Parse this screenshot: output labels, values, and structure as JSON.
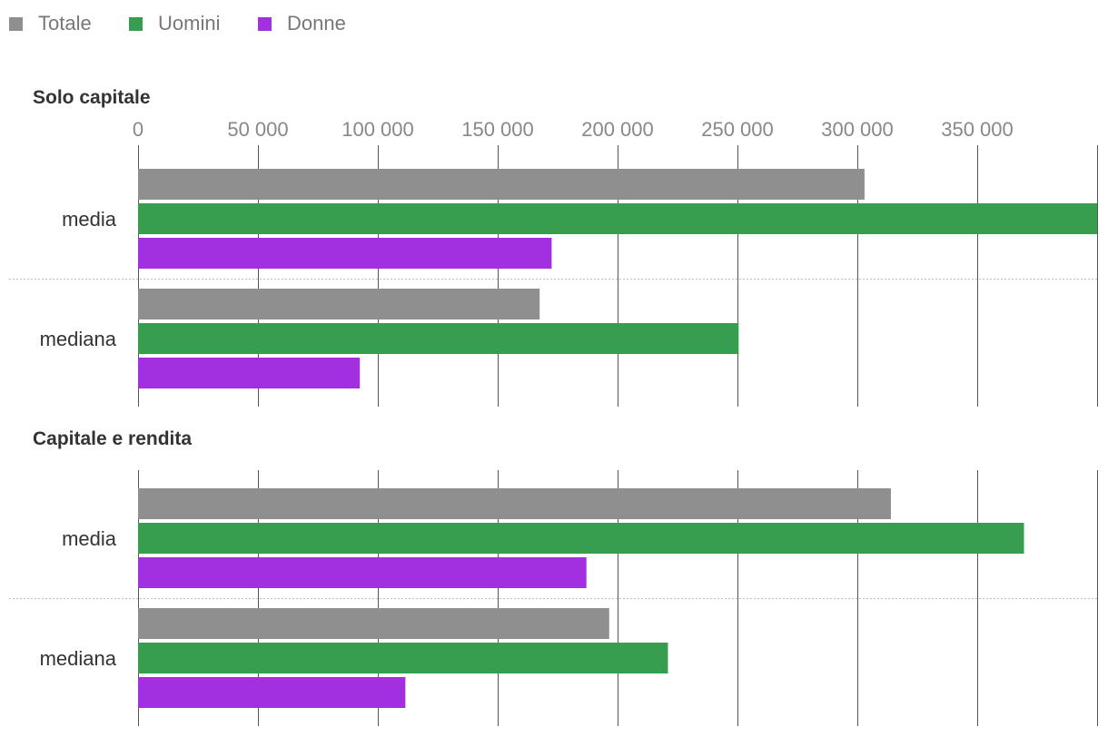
{
  "chart_data": {
    "type": "bar",
    "orientation": "horizontal",
    "legend": [
      {
        "name": "Totale",
        "color": "#8f8f8f"
      },
      {
        "name": "Uomini",
        "color": "#379e4f"
      },
      {
        "name": "Donne",
        "color": "#a22fe0"
      }
    ],
    "xlim": [
      0,
      400000
    ],
    "ticks": [
      {
        "value": 0,
        "label": "0"
      },
      {
        "value": 50000,
        "label": "50 000"
      },
      {
        "value": 100000,
        "label": "100 000"
      },
      {
        "value": 150000,
        "label": "150 000"
      },
      {
        "value": 200000,
        "label": "200 000"
      },
      {
        "value": 250000,
        "label": "250 000"
      },
      {
        "value": 300000,
        "label": "300 000"
      },
      {
        "value": 350000,
        "label": "350 000"
      }
    ],
    "panels": [
      {
        "title": "Solo capitale",
        "categories": [
          "media",
          "mediana"
        ],
        "series": [
          {
            "name": "Totale",
            "values": [
              303000,
              167500
            ]
          },
          {
            "name": "Uomini",
            "values": [
              400000,
              250500
            ]
          },
          {
            "name": "Donne",
            "values": [
              172500,
              92500
            ]
          }
        ]
      },
      {
        "title": "Capitale e rendita",
        "categories": [
          "media",
          "mediana"
        ],
        "series": [
          {
            "name": "Totale",
            "values": [
              314000,
              196500
            ]
          },
          {
            "name": "Uomini",
            "values": [
              369500,
              221000
            ]
          },
          {
            "name": "Donne",
            "values": [
              187000,
              111500
            ]
          }
        ]
      }
    ]
  }
}
